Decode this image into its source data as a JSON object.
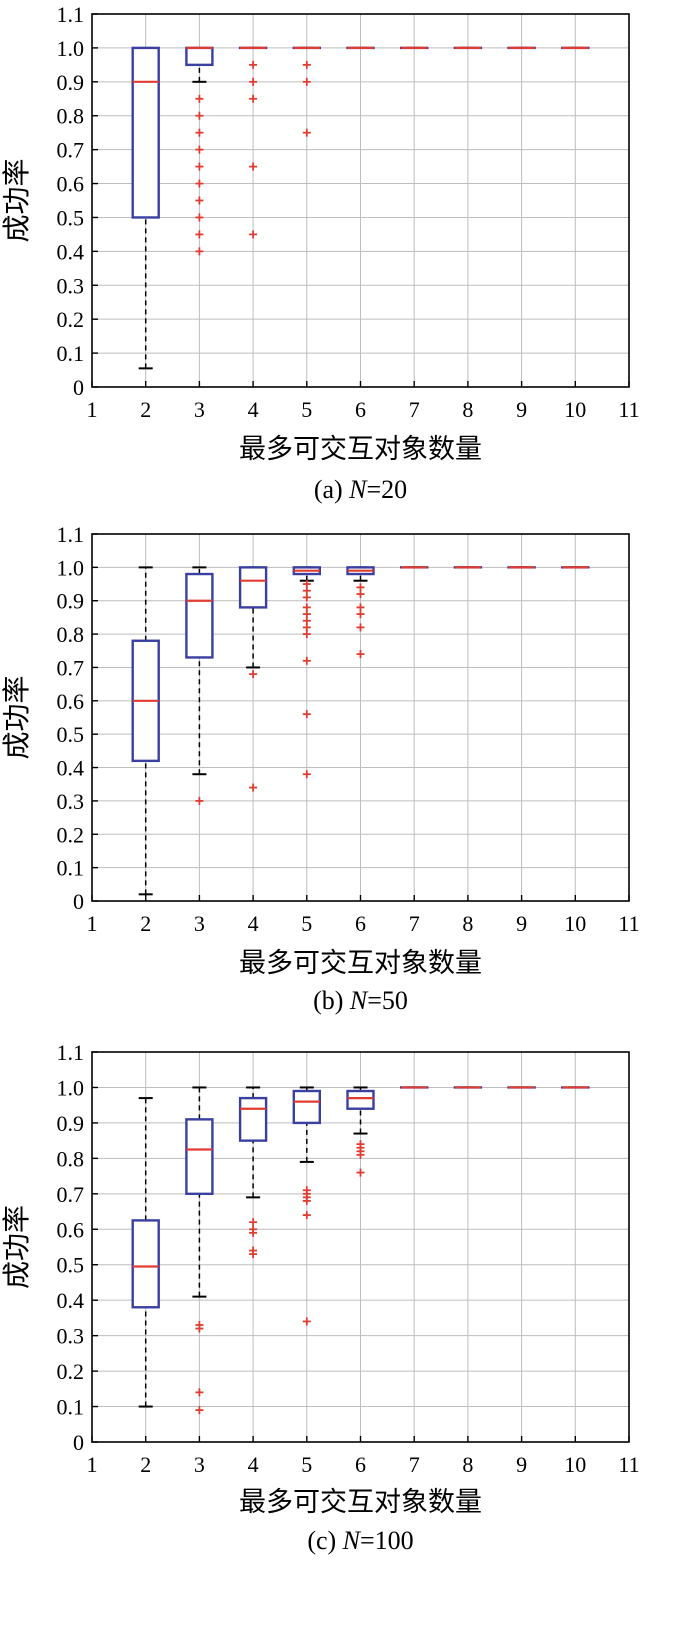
{
  "chart_data": [
    {
      "type": "box",
      "caption_prefix": "(a) ",
      "caption_var": "N",
      "caption_suffix": "=20",
      "xlabel": "最多可交互对象数量",
      "ylabel": "成功率",
      "xlim": [
        1,
        11
      ],
      "ylim": [
        0,
        1.1
      ],
      "xticks": [
        "1",
        "2",
        "3",
        "4",
        "5",
        "6",
        "7",
        "8",
        "9",
        "10",
        "11"
      ],
      "yticks": [
        "0",
        "0.1",
        "0.2",
        "0.3",
        "0.4",
        "0.5",
        "0.6",
        "0.7",
        "0.8",
        "0.9",
        "1.0",
        "1.1"
      ],
      "grid": true,
      "boxes": [
        {
          "x": 2,
          "q1": 0.5,
          "median": 0.9,
          "q3": 1.0,
          "whisker_low": 0.055,
          "whisker_high": 1.0,
          "outliers": []
        },
        {
          "x": 3,
          "q1": 0.95,
          "median": 1.0,
          "q3": 1.0,
          "whisker_low": 0.9,
          "whisker_high": 1.0,
          "outliers": [
            0.4,
            0.45,
            0.5,
            0.55,
            0.6,
            0.65,
            0.7,
            0.75,
            0.8,
            0.85
          ]
        },
        {
          "x": 4,
          "q1": 1.0,
          "median": 1.0,
          "q3": 1.0,
          "whisker_low": 1.0,
          "whisker_high": 1.0,
          "outliers": [
            0.45,
            0.65,
            0.85,
            0.9,
            0.95
          ]
        },
        {
          "x": 5,
          "q1": 1.0,
          "median": 1.0,
          "q3": 1.0,
          "whisker_low": 1.0,
          "whisker_high": 1.0,
          "outliers": [
            0.75,
            0.9,
            0.95
          ]
        },
        {
          "x": 6,
          "q1": 1.0,
          "median": 1.0,
          "q3": 1.0,
          "whisker_low": 1.0,
          "whisker_high": 1.0,
          "outliers": []
        },
        {
          "x": 7,
          "q1": 1.0,
          "median": 1.0,
          "q3": 1.0,
          "whisker_low": 1.0,
          "whisker_high": 1.0,
          "outliers": []
        },
        {
          "x": 8,
          "q1": 1.0,
          "median": 1.0,
          "q3": 1.0,
          "whisker_low": 1.0,
          "whisker_high": 1.0,
          "outliers": []
        },
        {
          "x": 9,
          "q1": 1.0,
          "median": 1.0,
          "q3": 1.0,
          "whisker_low": 1.0,
          "whisker_high": 1.0,
          "outliers": []
        },
        {
          "x": 10,
          "q1": 1.0,
          "median": 1.0,
          "q3": 1.0,
          "whisker_low": 1.0,
          "whisker_high": 1.0,
          "outliers": []
        }
      ]
    },
    {
      "type": "box",
      "caption_prefix": "(b) ",
      "caption_var": "N",
      "caption_suffix": "=50",
      "xlabel": "最多可交互对象数量",
      "ylabel": "成功率",
      "xlim": [
        1,
        11
      ],
      "ylim": [
        0,
        1.1
      ],
      "xticks": [
        "1",
        "2",
        "3",
        "4",
        "5",
        "6",
        "7",
        "8",
        "9",
        "10",
        "11"
      ],
      "yticks": [
        "0",
        "0.1",
        "0.2",
        "0.3",
        "0.4",
        "0.5",
        "0.6",
        "0.7",
        "0.8",
        "0.9",
        "1.0",
        "1.1"
      ],
      "grid": true,
      "boxes": [
        {
          "x": 2,
          "q1": 0.42,
          "median": 0.6,
          "q3": 0.78,
          "whisker_low": 0.02,
          "whisker_high": 1.0,
          "outliers": []
        },
        {
          "x": 3,
          "q1": 0.73,
          "median": 0.9,
          "q3": 0.98,
          "whisker_low": 0.38,
          "whisker_high": 1.0,
          "outliers": [
            0.3
          ]
        },
        {
          "x": 4,
          "q1": 0.88,
          "median": 0.96,
          "q3": 1.0,
          "whisker_low": 0.7,
          "whisker_high": 1.0,
          "outliers": [
            0.34,
            0.68
          ]
        },
        {
          "x": 5,
          "q1": 0.98,
          "median": 0.99,
          "q3": 1.0,
          "whisker_low": 0.96,
          "whisker_high": 1.0,
          "outliers": [
            0.38,
            0.56,
            0.72,
            0.8,
            0.82,
            0.84,
            0.86,
            0.88,
            0.91,
            0.93,
            0.95
          ]
        },
        {
          "x": 6,
          "q1": 0.98,
          "median": 0.99,
          "q3": 1.0,
          "whisker_low": 0.96,
          "whisker_high": 1.0,
          "outliers": [
            0.74,
            0.82,
            0.86,
            0.88,
            0.92,
            0.94
          ]
        },
        {
          "x": 7,
          "q1": 1.0,
          "median": 1.0,
          "q3": 1.0,
          "whisker_low": 1.0,
          "whisker_high": 1.0,
          "outliers": []
        },
        {
          "x": 8,
          "q1": 1.0,
          "median": 1.0,
          "q3": 1.0,
          "whisker_low": 1.0,
          "whisker_high": 1.0,
          "outliers": []
        },
        {
          "x": 9,
          "q1": 1.0,
          "median": 1.0,
          "q3": 1.0,
          "whisker_low": 1.0,
          "whisker_high": 1.0,
          "outliers": []
        },
        {
          "x": 10,
          "q1": 1.0,
          "median": 1.0,
          "q3": 1.0,
          "whisker_low": 1.0,
          "whisker_high": 1.0,
          "outliers": []
        }
      ]
    },
    {
      "type": "box",
      "caption_prefix": "(c) ",
      "caption_var": "N",
      "caption_suffix": "=100",
      "xlabel": "最多可交互对象数量",
      "ylabel": "成功率",
      "xlim": [
        1,
        11
      ],
      "ylim": [
        0,
        1.1
      ],
      "xticks": [
        "1",
        "2",
        "3",
        "4",
        "5",
        "6",
        "7",
        "8",
        "9",
        "10",
        "11"
      ],
      "yticks": [
        "0",
        "0.1",
        "0.2",
        "0.3",
        "0.4",
        "0.5",
        "0.6",
        "0.7",
        "0.8",
        "0.9",
        "1.0",
        "1.1"
      ],
      "grid": true,
      "boxes": [
        {
          "x": 2,
          "q1": 0.38,
          "median": 0.495,
          "q3": 0.625,
          "whisker_low": 0.1,
          "whisker_high": 0.97,
          "outliers": []
        },
        {
          "x": 3,
          "q1": 0.7,
          "median": 0.825,
          "q3": 0.91,
          "whisker_low": 0.41,
          "whisker_high": 1.0,
          "outliers": [
            0.09,
            0.14,
            0.32,
            0.33
          ]
        },
        {
          "x": 4,
          "q1": 0.85,
          "median": 0.94,
          "q3": 0.97,
          "whisker_low": 0.69,
          "whisker_high": 1.0,
          "outliers": [
            0.53,
            0.54,
            0.59,
            0.6,
            0.62
          ]
        },
        {
          "x": 5,
          "q1": 0.9,
          "median": 0.96,
          "q3": 0.99,
          "whisker_low": 0.79,
          "whisker_high": 1.0,
          "outliers": [
            0.34,
            0.64,
            0.68,
            0.69,
            0.7,
            0.71
          ]
        },
        {
          "x": 6,
          "q1": 0.94,
          "median": 0.97,
          "q3": 0.99,
          "whisker_low": 0.87,
          "whisker_high": 1.0,
          "outliers": [
            0.76,
            0.81,
            0.82,
            0.83,
            0.84
          ]
        },
        {
          "x": 7,
          "q1": 1.0,
          "median": 1.0,
          "q3": 1.0,
          "whisker_low": 1.0,
          "whisker_high": 1.0,
          "outliers": []
        },
        {
          "x": 8,
          "q1": 1.0,
          "median": 1.0,
          "q3": 1.0,
          "whisker_low": 1.0,
          "whisker_high": 1.0,
          "outliers": []
        },
        {
          "x": 9,
          "q1": 1.0,
          "median": 1.0,
          "q3": 1.0,
          "whisker_low": 1.0,
          "whisker_high": 1.0,
          "outliers": []
        },
        {
          "x": 10,
          "q1": 1.0,
          "median": 1.0,
          "q3": 1.0,
          "whisker_low": 1.0,
          "whisker_high": 1.0,
          "outliers": []
        }
      ]
    }
  ]
}
